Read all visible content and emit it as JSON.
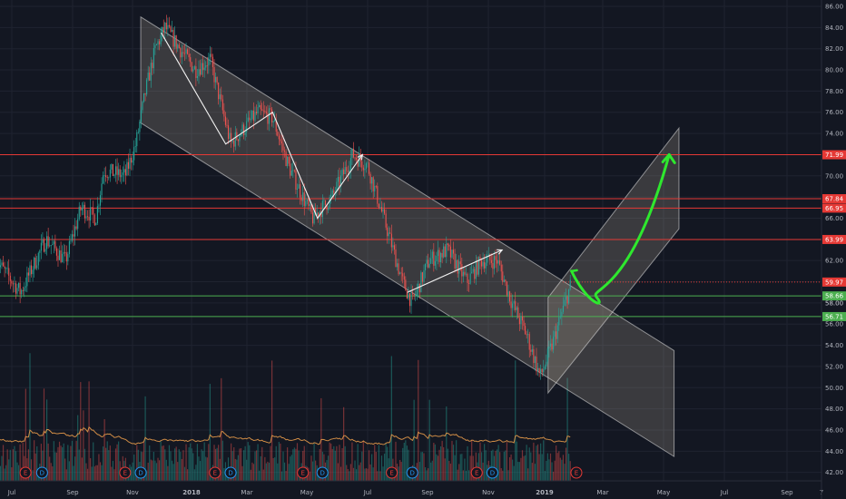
{
  "chart_data": {
    "type": "candlestick",
    "title": "",
    "x_ticks": [
      "Jul",
      "Sep",
      "Nov",
      "2018",
      "Mar",
      "May",
      "Jul",
      "Sep",
      "Nov",
      "2019",
      "Mar",
      "May",
      "Jul",
      "Sep",
      "7"
    ],
    "y_ticks": [
      "86.00",
      "84.00",
      "82.00",
      "80.00",
      "78.00",
      "76.00",
      "74.00",
      "72.00",
      "70.00",
      "68.00",
      "66.00",
      "64.00",
      "62.00",
      "60.00",
      "58.00",
      "56.00",
      "54.00",
      "52.00",
      "50.00",
      "48.00",
      "46.00",
      "44.00",
      "42.00"
    ],
    "ylim": [
      41.2,
      86.6
    ],
    "price_path": [
      {
        "date": "2017-06-15",
        "price": 62
      },
      {
        "date": "2017-07-10",
        "price": 59
      },
      {
        "date": "2017-08-05",
        "price": 64
      },
      {
        "date": "2017-08-25",
        "price": 62
      },
      {
        "date": "2017-09-10",
        "price": 67
      },
      {
        "date": "2017-09-25",
        "price": 66
      },
      {
        "date": "2017-10-03",
        "price": 70.5
      },
      {
        "date": "2017-10-25",
        "price": 70
      },
      {
        "date": "2017-11-05",
        "price": 73
      },
      {
        "date": "2017-11-15",
        "price": 78
      },
      {
        "date": "2017-11-25",
        "price": 82
      },
      {
        "date": "2017-12-05",
        "price": 84
      },
      {
        "date": "2017-12-20",
        "price": 82
      },
      {
        "date": "2018-01-05",
        "price": 80
      },
      {
        "date": "2018-01-20",
        "price": 81
      },
      {
        "date": "2018-02-10",
        "price": 73
      },
      {
        "date": "2018-03-10",
        "price": 76
      },
      {
        "date": "2018-03-25",
        "price": 75.5
      },
      {
        "date": "2018-04-10",
        "price": 71
      },
      {
        "date": "2018-05-05",
        "price": 66
      },
      {
        "date": "2018-05-25",
        "price": 68
      },
      {
        "date": "2018-06-15",
        "price": 72
      },
      {
        "date": "2018-06-30",
        "price": 71
      },
      {
        "date": "2018-07-20",
        "price": 65
      },
      {
        "date": "2018-08-05",
        "price": 60
      },
      {
        "date": "2018-08-15",
        "price": 58
      },
      {
        "date": "2018-09-01",
        "price": 62
      },
      {
        "date": "2018-09-20",
        "price": 63
      },
      {
        "date": "2018-10-10",
        "price": 60
      },
      {
        "date": "2018-10-25",
        "price": 62
      },
      {
        "date": "2018-11-10",
        "price": 62
      },
      {
        "date": "2018-11-25",
        "price": 58
      },
      {
        "date": "2018-12-10",
        "price": 55
      },
      {
        "date": "2018-12-24",
        "price": 51
      },
      {
        "date": "2019-01-05",
        "price": 54
      },
      {
        "date": "2019-01-15",
        "price": 57
      },
      {
        "date": "2019-01-25",
        "price": 59.97
      }
    ],
    "levels": [
      {
        "label": "71.99",
        "price": 71.99,
        "color": "#e53935"
      },
      {
        "label": "67.84",
        "price": 67.84,
        "color": "#e53935"
      },
      {
        "label": "66.95",
        "price": 66.95,
        "color": "#e53935"
      },
      {
        "label": "63.99",
        "price": 63.99,
        "color": "#e53935"
      },
      {
        "label": "58.66",
        "price": 58.66,
        "color": "#4caf50"
      },
      {
        "label": "56.71",
        "price": 56.71,
        "color": "#4caf50"
      }
    ],
    "last_price": {
      "label": "59.97",
      "price": 59.97,
      "color": "#e53935"
    },
    "axis_plain_tick": "58.00",
    "channel": [
      {
        "date": "2017-11-10",
        "price": 85
      },
      {
        "date": "2019-05-10",
        "price": 53.5
      },
      {
        "date": "2019-05-10",
        "price": 43.5
      },
      {
        "date": "2017-11-10",
        "price": 75
      }
    ],
    "up_channel": [
      {
        "date": "2019-01-01",
        "price": 58.5
      },
      {
        "date": "2019-05-15",
        "price": 74.5
      },
      {
        "date": "2019-05-15",
        "price": 65
      },
      {
        "date": "2019-01-01",
        "price": 49.5
      }
    ],
    "pattern_lines": [
      [
        [
          "2017-12-01",
          83.5
        ],
        [
          "2018-02-05",
          73
        ],
        [
          "2018-03-25",
          76
        ],
        [
          "2018-05-10",
          66
        ],
        [
          "2018-06-25",
          72
        ]
      ],
      [
        [
          "2018-08-10",
          59
        ],
        [
          "2018-11-15",
          63
        ]
      ]
    ],
    "projection": [
      [
        "2019-01-25",
        61
      ],
      [
        "2019-02-20",
        58.5
      ],
      [
        "2019-03-25",
        60.5
      ],
      [
        "2019-05-05",
        72
      ]
    ],
    "volume_markers": [
      {
        "label": "E",
        "date": "2017-07-15",
        "color": "#e53935"
      },
      {
        "label": "D",
        "date": "2017-08-01",
        "color": "#2196f3"
      },
      {
        "label": "E",
        "date": "2017-10-25",
        "color": "#e53935"
      },
      {
        "label": "D",
        "date": "2017-11-10",
        "color": "#2196f3"
      },
      {
        "label": "E",
        "date": "2018-01-25",
        "color": "#e53935"
      },
      {
        "label": "D",
        "date": "2018-02-10",
        "color": "#2196f3"
      },
      {
        "label": "E",
        "date": "2018-04-25",
        "color": "#e53935"
      },
      {
        "label": "D",
        "date": "2018-05-15",
        "color": "#2196f3"
      },
      {
        "label": "E",
        "date": "2018-07-25",
        "color": "#e53935"
      },
      {
        "label": "D",
        "date": "2018-08-15",
        "color": "#2196f3"
      },
      {
        "label": "E",
        "date": "2018-10-20",
        "color": "#e53935"
      },
      {
        "label": "D",
        "date": "2018-11-05",
        "color": "#2196f3"
      },
      {
        "label": "E",
        "date": "2019-01-30",
        "color": "#e53935"
      }
    ]
  }
}
